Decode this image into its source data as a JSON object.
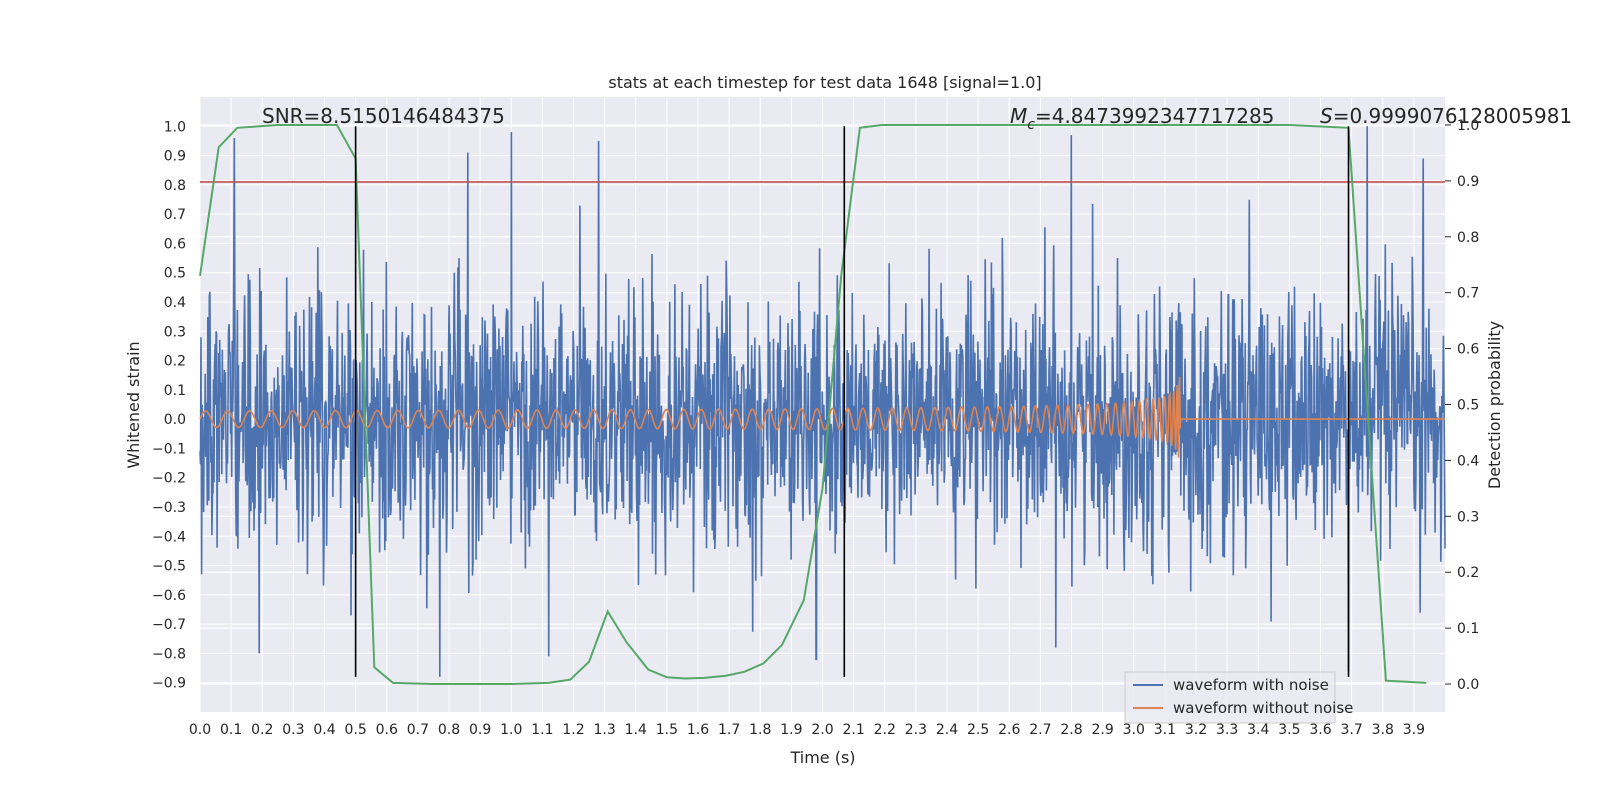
{
  "chart_data": {
    "type": "line",
    "title": "stats at each timestep for test data 1648 [signal=1.0]",
    "xlabel": "Time (s)",
    "ylabel": "Whitened strain",
    "y2label": "Detection probability",
    "xlim": [
      0.0,
      4.0
    ],
    "ylim": [
      -1.0,
      1.1
    ],
    "y2lim": [
      -0.05,
      1.05
    ],
    "grid": true,
    "legend_position": "lower-right",
    "x_ticks": [
      "0.0",
      "0.1",
      "0.2",
      "0.3",
      "0.4",
      "0.5",
      "0.6",
      "0.7",
      "0.8",
      "0.9",
      "1.0",
      "1.1",
      "1.2",
      "1.3",
      "1.4",
      "1.5",
      "1.6",
      "1.7",
      "1.8",
      "1.9",
      "2.0",
      "2.1",
      "2.2",
      "2.3",
      "2.4",
      "2.5",
      "2.6",
      "2.7",
      "2.8",
      "2.9",
      "3.0",
      "3.1",
      "3.2",
      "3.3",
      "3.4",
      "3.5",
      "3.6",
      "3.7",
      "3.8",
      "3.9"
    ],
    "y_ticks": [
      "−0.9",
      "−0.8",
      "−0.7",
      "−0.6",
      "−0.5",
      "−0.4",
      "−0.3",
      "−0.2",
      "−0.1",
      "0.0",
      "0.1",
      "0.2",
      "0.3",
      "0.4",
      "0.5",
      "0.6",
      "0.7",
      "0.8",
      "0.9",
      "1.0"
    ],
    "y2_ticks": [
      "0.0",
      "0.1",
      "0.2",
      "0.3",
      "0.4",
      "0.5",
      "0.6",
      "0.7",
      "0.8",
      "0.9",
      "1.0"
    ],
    "annotations": {
      "snr": "SNR=8.5150146484375",
      "mc_symbol": "M",
      "mc_sub": "c",
      "mc_value": "=4.8473992347717285",
      "s_symbol": "S",
      "s_value": "=0.9999076128005981"
    },
    "threshold_y": 0.81,
    "vertical_lines_x": [
      0.5,
      2.07,
      3.69
    ],
    "series": [
      {
        "name": "waveform with noise",
        "color": "#4c72b0",
        "kind": "noise",
        "amplitude_typical": 0.4,
        "peaks": [
          [
            0.11,
            0.96
          ],
          [
            0.86,
            0.91
          ],
          [
            1.0,
            0.98
          ],
          [
            1.28,
            0.95
          ],
          [
            2.8,
            0.97
          ],
          [
            3.75,
            1.0
          ],
          [
            3.93,
            0.89
          ],
          [
            0.19,
            -0.8
          ],
          [
            0.77,
            -0.88
          ],
          [
            1.12,
            -0.81
          ],
          [
            1.98,
            -0.82
          ],
          [
            3.69,
            -0.86
          ]
        ]
      },
      {
        "name": "waveform without noise",
        "color": "#dd8452",
        "kind": "chirp",
        "merger_time": 3.15,
        "peak_amplitude": 0.19
      },
      {
        "name": "",
        "color": "#55a868",
        "axis": "right",
        "x": [
          0.0,
          0.06,
          0.12,
          0.25,
          0.44,
          0.5,
          0.56,
          0.62,
          0.75,
          1.0,
          1.12,
          1.19,
          1.25,
          1.31,
          1.37,
          1.44,
          1.5,
          1.56,
          1.62,
          1.69,
          1.75,
          1.81,
          1.87,
          1.94,
          2.0,
          2.06,
          2.12,
          2.19,
          2.25,
          2.5,
          3.0,
          3.5,
          3.69,
          3.75,
          3.81,
          3.94
        ],
        "y": [
          0.73,
          0.96,
          0.995,
          1.0,
          1.0,
          0.94,
          0.03,
          0.002,
          0.0,
          0.0,
          0.002,
          0.008,
          0.04,
          0.13,
          0.075,
          0.026,
          0.012,
          0.01,
          0.011,
          0.015,
          0.022,
          0.037,
          0.07,
          0.15,
          0.35,
          0.73,
          0.995,
          1.0,
          1.0,
          1.0,
          1.0,
          1.0,
          0.995,
          0.5,
          0.006,
          0.002
        ]
      }
    ]
  }
}
